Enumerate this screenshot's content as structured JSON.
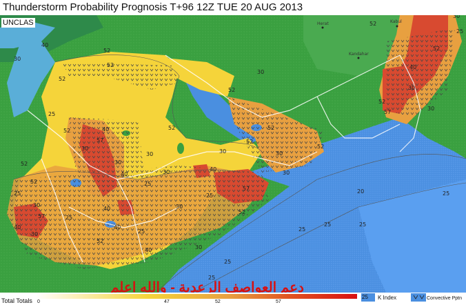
{
  "title": "Thunderstorm Probability Prognosis T+96 12Z TUE 20 AUG 2013",
  "classification": "UNCLAS",
  "arabic_caption": "دعم العواصف الرعدية - والله اعلم",
  "cities": [
    {
      "name": "Herat"
    },
    {
      "name": "Kabul"
    },
    {
      "name": "Kandahar"
    }
  ],
  "contour_labels": [
    "25",
    "30",
    "40",
    "47",
    "52",
    "57",
    "40",
    "47",
    "52",
    "30",
    "25",
    "47",
    "30",
    "47",
    "52",
    "40",
    "30",
    "25",
    "47",
    "30",
    "52",
    "47",
    "40",
    "30",
    "25",
    "20",
    "25",
    "30",
    "47",
    "52",
    "57",
    "30",
    "25",
    "20",
    "25",
    "30",
    "47",
    "52",
    "40",
    "40",
    "30",
    "25"
  ],
  "legend": {
    "total_totals_label": "Total Totals",
    "scale_ticks": [
      "0",
      "47",
      "52",
      "57"
    ],
    "k_index_label": "K Index",
    "k_index_value": "25",
    "convective_label": "Convective Pptn"
  },
  "colors": {
    "sea": "#4a8fe0",
    "land": "#3aa040",
    "desert": "#f5d43a",
    "orange": "#e8a040",
    "red": "#d84a30"
  }
}
